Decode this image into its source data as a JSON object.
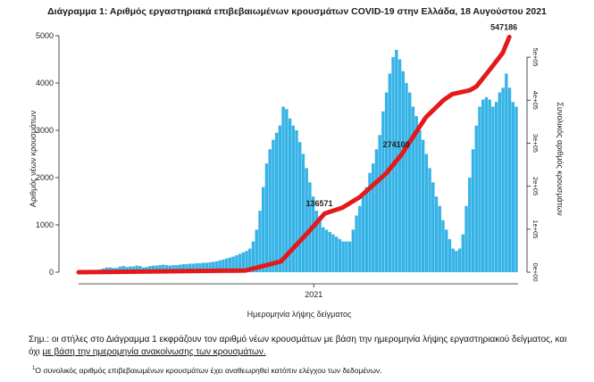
{
  "title": "Διάγραμμα 1: Αριθμός εργαστηριακά επιβεβαιωμένων κρουσμάτων COVID-19 στην Ελλάδα, 18 Αυγούστου 2021",
  "chart_data": {
    "type": "bar",
    "title": "Διάγραμμα 1: Αριθμός εργαστηριακά επιβεβαιωμένων κρουσμάτων COVID-19 στην Ελλάδα, 18 Αυγούστου 2021",
    "xlabel": "Ημερομηνία λήψης δείγματος",
    "ylabel": "Αριθμός νέων κρουσμάτων",
    "y2label": "Συνολικός αριθμός κρουσμάτων",
    "ylim": [
      0,
      5000
    ],
    "y2lim": [
      0,
      550000
    ],
    "y_ticks": [
      "0",
      "1000",
      "2000",
      "3000",
      "4000",
      "5000"
    ],
    "y2_ticks": [
      "0e+00",
      "1e+05",
      "2e+05",
      "3e+05",
      "4e+05",
      "5e+05"
    ],
    "x_ticks": [
      "2021"
    ],
    "x_tick_position": 0.535,
    "grid": false,
    "bar_color": "#36b3e6",
    "line_color": "#e3191c",
    "daily_series": {
      "name": "",
      "x_start": 0,
      "x_end": 1,
      "values": [
        5,
        10,
        15,
        20,
        30,
        40,
        60,
        80,
        100,
        100,
        90,
        90,
        120,
        130,
        110,
        120,
        120,
        140,
        130,
        100,
        110,
        130,
        140,
        140,
        150,
        160,
        150,
        140,
        150,
        150,
        160,
        170,
        170,
        180,
        180,
        190,
        190,
        200,
        200,
        210,
        220,
        230,
        250,
        270,
        290,
        310,
        330,
        360,
        390,
        420,
        450,
        500,
        650,
        900,
        1300,
        1800,
        2300,
        2600,
        2800,
        2950,
        3100,
        3500,
        3450,
        3250,
        3100,
        3000,
        2750,
        2500,
        2200,
        1900,
        1600,
        1300,
        1150,
        950,
        900,
        850,
        800,
        750,
        700,
        650,
        650,
        650,
        900,
        1200,
        1400,
        1600,
        1800,
        2100,
        2300,
        2600,
        2900,
        3400,
        3800,
        4200,
        4550,
        4700,
        4500,
        4250,
        4000,
        3800,
        3500,
        3300,
        3000,
        2800,
        2500,
        2200,
        1900,
        1600,
        1400,
        1100,
        900,
        700,
        500,
        450,
        500,
        800,
        1400,
        2000,
        2600,
        3100,
        3500,
        3650,
        3700,
        3650,
        3500,
        3600,
        3800,
        3900,
        4200,
        3900,
        3600,
        3500
      ]
    },
    "cumulative_series": {
      "name": "",
      "points": [
        [
          0.0,
          0
        ],
        [
          0.38,
          4000
        ],
        [
          0.46,
          25000
        ],
        [
          0.52,
          90000
        ],
        [
          0.56,
          136571
        ],
        [
          0.6,
          150000
        ],
        [
          0.64,
          175000
        ],
        [
          0.7,
          230000
        ],
        [
          0.735,
          274000
        ],
        [
          0.79,
          360000
        ],
        [
          0.83,
          400000
        ],
        [
          0.85,
          414000
        ],
        [
          0.89,
          423000
        ],
        [
          0.905,
          432000
        ],
        [
          0.935,
          470000
        ],
        [
          0.965,
          510000
        ],
        [
          0.98,
          547186
        ]
      ]
    },
    "annotations": [
      {
        "label": "136571",
        "x": 0.56,
        "y": 136571
      },
      {
        "label": "274100",
        "x": 0.735,
        "y": 274000
      },
      {
        "label": "547186",
        "x": 0.98,
        "y": 547186
      }
    ]
  },
  "notes": {
    "line1_part1": "Σημ.: οι στήλες στο Διάγραμμα 1 εκφράζουν τον αριθμό νέων κρουσμάτων με βάση την ημερομηνία λήψης εργαστηριακού δείγματος, και όχι ",
    "line1_part2": "με βάση την ημερομηνία ανακοίνωσης των κρουσμάτων.",
    "footnote_marker": "1",
    "footnote": "Ο συνολικός αριθμός επιβεβαιωμένων κρουσμάτων έχει αναθεωρηθεί κατόπιν ελέγχου των δεδομένων."
  }
}
